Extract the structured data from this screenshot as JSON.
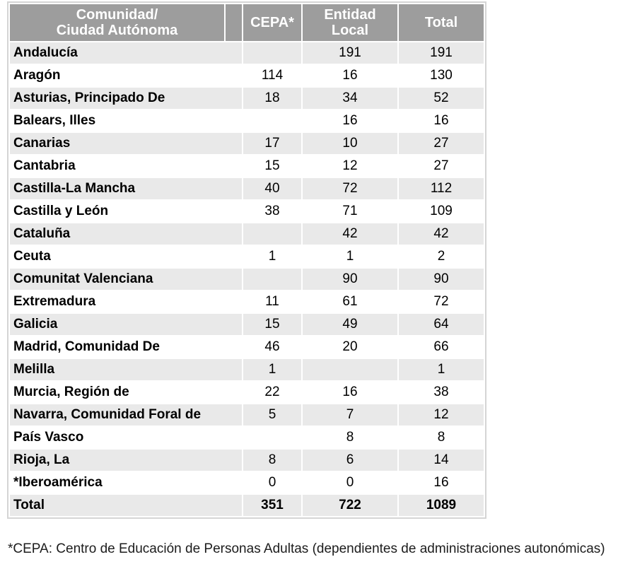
{
  "colors": {
    "header_bg": "#9d9d9d",
    "header_text": "#ffffff",
    "stripe_bg": "#e9e9e9",
    "border": "#d5d5d5"
  },
  "table": {
    "header": {
      "region_line1": "Comunidad/",
      "region_line2": "Ciudad Autónoma",
      "cepa": "CEPA*",
      "entidad_line1": "Entidad",
      "entidad_line2": "Local",
      "total": "Total"
    },
    "rows": [
      {
        "name": "Andalucía",
        "cepa": "",
        "entidad": "191",
        "total": "191"
      },
      {
        "name": "Aragón",
        "cepa": "114",
        "entidad": "16",
        "total": "130"
      },
      {
        "name": "Asturias, Principado De",
        "cepa": "18",
        "entidad": "34",
        "total": "52"
      },
      {
        "name": "Balears, Illes",
        "cepa": "",
        "entidad": "16",
        "total": "16"
      },
      {
        "name": "Canarias",
        "cepa": "17",
        "entidad": "10",
        "total": "27"
      },
      {
        "name": "Cantabria",
        "cepa": "15",
        "entidad": "12",
        "total": "27"
      },
      {
        "name": "Castilla-La Mancha",
        "cepa": "40",
        "entidad": "72",
        "total": "112"
      },
      {
        "name": "Castilla y León",
        "cepa": "38",
        "entidad": "71",
        "total": "109"
      },
      {
        "name": "Cataluña",
        "cepa": "",
        "entidad": "42",
        "total": "42"
      },
      {
        "name": "Ceuta",
        "cepa": "1",
        "entidad": "1",
        "total": "2"
      },
      {
        "name": "Comunitat Valenciana",
        "cepa": "",
        "entidad": "90",
        "total": "90"
      },
      {
        "name": "Extremadura",
        "cepa": "11",
        "entidad": "61",
        "total": "72"
      },
      {
        "name": "Galicia",
        "cepa": "15",
        "entidad": "49",
        "total": "64"
      },
      {
        "name": "Madrid, Comunidad De",
        "cepa": "46",
        "entidad": "20",
        "total": "66"
      },
      {
        "name": "Melilla",
        "cepa": "1",
        "entidad": "",
        "total": "1"
      },
      {
        "name": "Murcia, Región de",
        "cepa": "22",
        "entidad": "16",
        "total": "38"
      },
      {
        "name": "Navarra, Comunidad Foral de",
        "cepa": "5",
        "entidad": "7",
        "total": "12"
      },
      {
        "name": "País Vasco",
        "cepa": "",
        "entidad": "8",
        "total": "8"
      },
      {
        "name": "Rioja, La",
        "cepa": "8",
        "entidad": "6",
        "total": "14"
      },
      {
        "name": "*Iberoamérica",
        "cepa": "0",
        "entidad": "0",
        "total": "16"
      }
    ],
    "total_row": {
      "name": "Total",
      "cepa": "351",
      "entidad": "722",
      "total": "1089"
    }
  },
  "footnote": "*CEPA: Centro de Educación de Personas Adultas (dependientes de administraciones autonómicas)"
}
